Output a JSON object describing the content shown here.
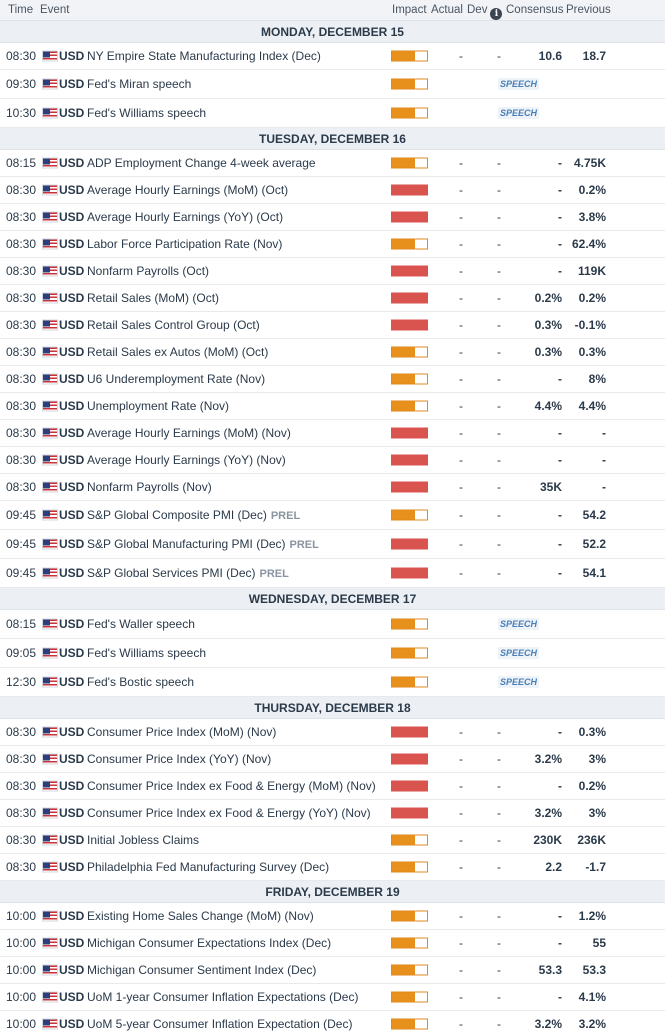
{
  "header": {
    "time": "Time",
    "event": "Event",
    "impact": "Impact",
    "actual": "Actual",
    "dev": "Dev",
    "consensus": "Consensus",
    "previous": "Previous"
  },
  "colors": {
    "high": "#d9534f",
    "medium": "#e8901c",
    "border": "#e08a1e"
  },
  "days": [
    {
      "label": "MONDAY, DECEMBER 15",
      "events": [
        {
          "time": "08:30",
          "currency": "USD",
          "event": "NY Empire State Manufacturing Index (Dec)",
          "tag": "",
          "impact": "medium",
          "actual": "-",
          "dev": "-",
          "consensus": "10.6",
          "previous": "18.7",
          "speech": ""
        },
        {
          "time": "09:30",
          "currency": "USD",
          "event": "Fed's Miran speech",
          "tag": "",
          "impact": "medium",
          "actual": "",
          "dev": "",
          "consensus": "",
          "previous": "",
          "speech": "SPEECH"
        },
        {
          "time": "10:30",
          "currency": "USD",
          "event": "Fed's Williams speech",
          "tag": "",
          "impact": "medium",
          "actual": "",
          "dev": "",
          "consensus": "",
          "previous": "",
          "speech": "SPEECH"
        }
      ]
    },
    {
      "label": "TUESDAY, DECEMBER 16",
      "events": [
        {
          "time": "08:15",
          "currency": "USD",
          "event": "ADP Employment Change 4-week average",
          "tag": "",
          "impact": "medium",
          "actual": "-",
          "dev": "-",
          "consensus": "-",
          "previous": "4.75K",
          "speech": ""
        },
        {
          "time": "08:30",
          "currency": "USD",
          "event": "Average Hourly Earnings (MoM) (Oct)",
          "tag": "",
          "impact": "high",
          "actual": "-",
          "dev": "-",
          "consensus": "-",
          "previous": "0.2%",
          "speech": ""
        },
        {
          "time": "08:30",
          "currency": "USD",
          "event": "Average Hourly Earnings (YoY) (Oct)",
          "tag": "",
          "impact": "high",
          "actual": "-",
          "dev": "-",
          "consensus": "-",
          "previous": "3.8%",
          "speech": ""
        },
        {
          "time": "08:30",
          "currency": "USD",
          "event": "Labor Force Participation Rate (Nov)",
          "tag": "",
          "impact": "medium",
          "actual": "-",
          "dev": "-",
          "consensus": "-",
          "previous": "62.4%",
          "speech": ""
        },
        {
          "time": "08:30",
          "currency": "USD",
          "event": "Nonfarm Payrolls (Oct)",
          "tag": "",
          "impact": "high",
          "actual": "-",
          "dev": "-",
          "consensus": "-",
          "previous": "119K",
          "speech": ""
        },
        {
          "time": "08:30",
          "currency": "USD",
          "event": "Retail Sales (MoM) (Oct)",
          "tag": "",
          "impact": "high",
          "actual": "-",
          "dev": "-",
          "consensus": "0.2%",
          "previous": "0.2%",
          "speech": ""
        },
        {
          "time": "08:30",
          "currency": "USD",
          "event": "Retail Sales Control Group (Oct)",
          "tag": "",
          "impact": "high",
          "actual": "-",
          "dev": "-",
          "consensus": "0.3%",
          "previous": "-0.1%",
          "speech": ""
        },
        {
          "time": "08:30",
          "currency": "USD",
          "event": "Retail Sales ex Autos (MoM) (Oct)",
          "tag": "",
          "impact": "medium",
          "actual": "-",
          "dev": "-",
          "consensus": "0.3%",
          "previous": "0.3%",
          "speech": ""
        },
        {
          "time": "08:30",
          "currency": "USD",
          "event": "U6 Underemployment Rate (Nov)",
          "tag": "",
          "impact": "medium",
          "actual": "-",
          "dev": "-",
          "consensus": "-",
          "previous": "8%",
          "speech": ""
        },
        {
          "time": "08:30",
          "currency": "USD",
          "event": "Unemployment Rate (Nov)",
          "tag": "",
          "impact": "medium",
          "actual": "-",
          "dev": "-",
          "consensus": "4.4%",
          "previous": "4.4%",
          "speech": ""
        },
        {
          "time": "08:30",
          "currency": "USD",
          "event": "Average Hourly Earnings (MoM) (Nov)",
          "tag": "",
          "impact": "high",
          "actual": "-",
          "dev": "-",
          "consensus": "-",
          "previous": "-",
          "speech": ""
        },
        {
          "time": "08:30",
          "currency": "USD",
          "event": "Average Hourly Earnings (YoY) (Nov)",
          "tag": "",
          "impact": "high",
          "actual": "-",
          "dev": "-",
          "consensus": "-",
          "previous": "-",
          "speech": ""
        },
        {
          "time": "08:30",
          "currency": "USD",
          "event": "Nonfarm Payrolls (Nov)",
          "tag": "",
          "impact": "high",
          "actual": "-",
          "dev": "-",
          "consensus": "35K",
          "previous": "-",
          "speech": ""
        },
        {
          "time": "09:45",
          "currency": "USD",
          "event": "S&P Global Composite PMI (Dec)",
          "tag": "PREL",
          "impact": "medium",
          "actual": "-",
          "dev": "-",
          "consensus": "-",
          "previous": "54.2",
          "speech": ""
        },
        {
          "time": "09:45",
          "currency": "USD",
          "event": "S&P Global Manufacturing PMI (Dec)",
          "tag": "PREL",
          "impact": "high",
          "actual": "-",
          "dev": "-",
          "consensus": "-",
          "previous": "52.2",
          "speech": ""
        },
        {
          "time": "09:45",
          "currency": "USD",
          "event": "S&P Global Services PMI (Dec)",
          "tag": "PREL",
          "impact": "high",
          "actual": "-",
          "dev": "-",
          "consensus": "-",
          "previous": "54.1",
          "speech": ""
        }
      ]
    },
    {
      "label": "WEDNESDAY, DECEMBER 17",
      "events": [
        {
          "time": "08:15",
          "currency": "USD",
          "event": "Fed's Waller speech",
          "tag": "",
          "impact": "medium",
          "actual": "",
          "dev": "",
          "consensus": "",
          "previous": "",
          "speech": "SPEECH"
        },
        {
          "time": "09:05",
          "currency": "USD",
          "event": "Fed's Williams speech",
          "tag": "",
          "impact": "medium",
          "actual": "",
          "dev": "",
          "consensus": "",
          "previous": "",
          "speech": "SPEECH"
        },
        {
          "time": "12:30",
          "currency": "USD",
          "event": "Fed's Bostic speech",
          "tag": "",
          "impact": "medium",
          "actual": "",
          "dev": "",
          "consensus": "",
          "previous": "",
          "speech": "SPEECH"
        }
      ]
    },
    {
      "label": "THURSDAY, DECEMBER 18",
      "events": [
        {
          "time": "08:30",
          "currency": "USD",
          "event": "Consumer Price Index (MoM) (Nov)",
          "tag": "",
          "impact": "high",
          "actual": "-",
          "dev": "-",
          "consensus": "-",
          "previous": "0.3%",
          "speech": ""
        },
        {
          "time": "08:30",
          "currency": "USD",
          "event": "Consumer Price Index (YoY) (Nov)",
          "tag": "",
          "impact": "high",
          "actual": "-",
          "dev": "-",
          "consensus": "3.2%",
          "previous": "3%",
          "speech": ""
        },
        {
          "time": "08:30",
          "currency": "USD",
          "event": "Consumer Price Index ex Food & Energy (MoM) (Nov)",
          "tag": "",
          "impact": "high",
          "actual": "-",
          "dev": "-",
          "consensus": "-",
          "previous": "0.2%",
          "speech": ""
        },
        {
          "time": "08:30",
          "currency": "USD",
          "event": "Consumer Price Index ex Food & Energy (YoY) (Nov)",
          "tag": "",
          "impact": "high",
          "actual": "-",
          "dev": "-",
          "consensus": "3.2%",
          "previous": "3%",
          "speech": ""
        },
        {
          "time": "08:30",
          "currency": "USD",
          "event": "Initial Jobless Claims",
          "tag": "",
          "impact": "medium",
          "actual": "-",
          "dev": "-",
          "consensus": "230K",
          "previous": "236K",
          "speech": ""
        },
        {
          "time": "08:30",
          "currency": "USD",
          "event": "Philadelphia Fed Manufacturing Survey (Dec)",
          "tag": "",
          "impact": "medium",
          "actual": "-",
          "dev": "-",
          "consensus": "2.2",
          "previous": "-1.7",
          "speech": ""
        }
      ]
    },
    {
      "label": "FRIDAY, DECEMBER 19",
      "events": [
        {
          "time": "10:00",
          "currency": "USD",
          "event": "Existing Home Sales Change (MoM) (Nov)",
          "tag": "",
          "impact": "medium",
          "actual": "-",
          "dev": "-",
          "consensus": "-",
          "previous": "1.2%",
          "speech": ""
        },
        {
          "time": "10:00",
          "currency": "USD",
          "event": "Michigan Consumer Expectations Index (Dec)",
          "tag": "",
          "impact": "medium",
          "actual": "-",
          "dev": "-",
          "consensus": "-",
          "previous": "55",
          "speech": ""
        },
        {
          "time": "10:00",
          "currency": "USD",
          "event": "Michigan Consumer Sentiment Index (Dec)",
          "tag": "",
          "impact": "medium",
          "actual": "-",
          "dev": "-",
          "consensus": "53.3",
          "previous": "53.3",
          "speech": ""
        },
        {
          "time": "10:00",
          "currency": "USD",
          "event": "UoM 1-year Consumer Inflation Expectations (Dec)",
          "tag": "",
          "impact": "medium",
          "actual": "-",
          "dev": "-",
          "consensus": "-",
          "previous": "4.1%",
          "speech": ""
        },
        {
          "time": "10:00",
          "currency": "USD",
          "event": "UoM 5-year Consumer Inflation Expectation (Dec)",
          "tag": "",
          "impact": "medium",
          "actual": "-",
          "dev": "-",
          "consensus": "3.2%",
          "previous": "3.2%",
          "speech": ""
        }
      ]
    }
  ]
}
